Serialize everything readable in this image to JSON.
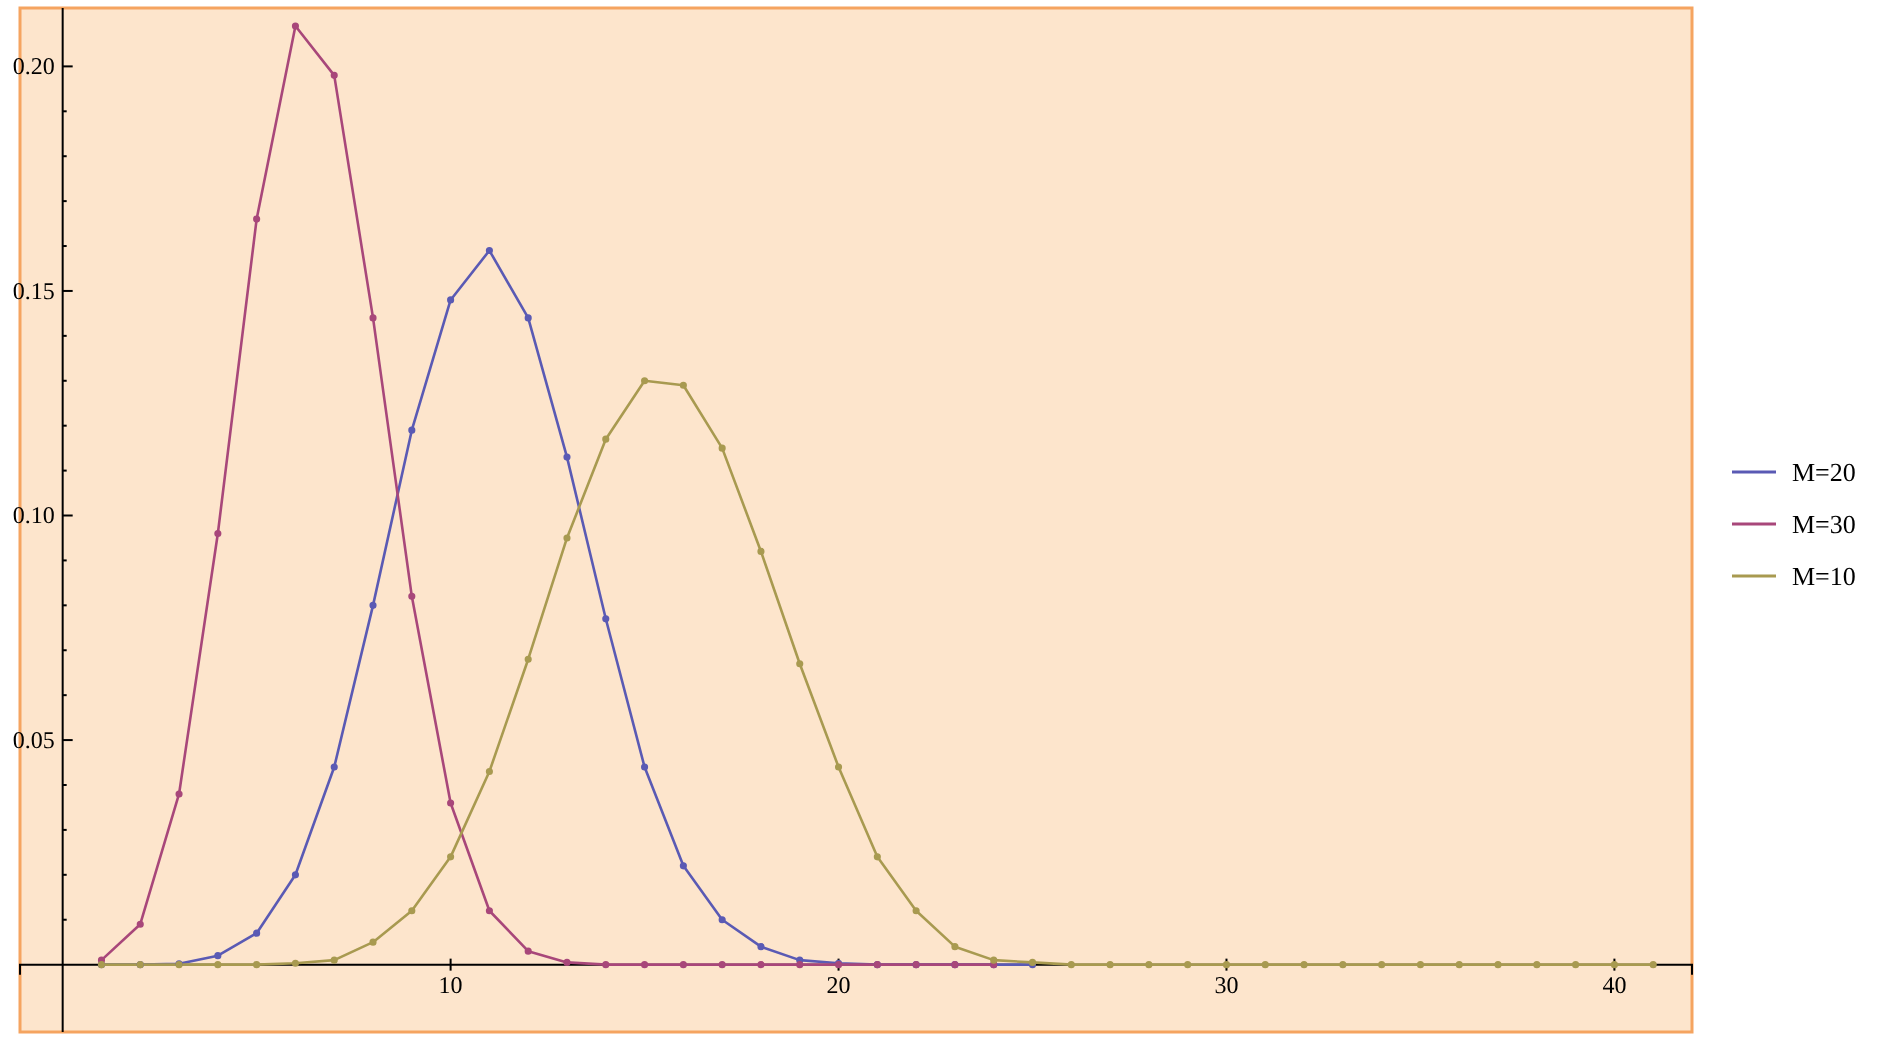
{
  "chart_data": {
    "type": "line",
    "x": [
      1,
      2,
      3,
      4,
      5,
      6,
      7,
      8,
      9,
      10,
      11,
      12,
      13,
      14,
      15,
      16,
      17,
      18,
      19,
      20,
      21,
      22,
      23,
      24,
      25,
      26,
      27,
      28,
      29,
      30,
      31,
      32,
      33,
      34,
      35,
      36,
      37,
      38,
      39,
      40,
      41
    ],
    "series": [
      {
        "name": "M=20",
        "color": "#5a5ab4",
        "values": [
          0,
          0,
          0.0002,
          0.002,
          0.007,
          0.02,
          0.044,
          0.08,
          0.119,
          0.148,
          0.159,
          0.144,
          0.113,
          0.077,
          0.044,
          0.022,
          0.01,
          0.004,
          0.001,
          0.0003,
          0,
          0,
          0,
          0,
          0,
          null,
          null,
          null,
          null,
          null,
          null,
          null,
          null,
          null,
          null,
          null,
          null,
          null,
          null,
          null,
          null
        ]
      },
      {
        "name": "M=30",
        "color": "#a8477a",
        "values": [
          0.001,
          0.009,
          0.038,
          0.096,
          0.166,
          0.209,
          0.198,
          0.144,
          0.082,
          0.036,
          0.012,
          0.003,
          0.0005,
          0,
          0,
          0,
          0,
          0,
          0,
          0,
          0,
          0,
          0,
          0,
          null,
          null,
          null,
          null,
          null,
          null,
          null,
          null,
          null,
          null,
          null,
          null,
          null,
          null,
          null,
          null,
          null
        ]
      },
      {
        "name": "M=10",
        "color": "#a89a50",
        "values": [
          0,
          0,
          0,
          0,
          0,
          0.0003,
          0.001,
          0.005,
          0.012,
          0.024,
          0.043,
          0.068,
          0.095,
          0.117,
          0.13,
          0.129,
          0.115,
          0.092,
          0.067,
          0.044,
          0.024,
          0.012,
          0.004,
          0.001,
          0.0005,
          0,
          0,
          0,
          0,
          0,
          0,
          0,
          0,
          0,
          0,
          0,
          0,
          0,
          0,
          0,
          0
        ]
      }
    ],
    "xlim": [
      -1.1,
      42
    ],
    "xticks": [
      10,
      20,
      30,
      40
    ],
    "ylim": [
      -0.015,
      0.213
    ],
    "yticks": [
      {
        "value": 0.01,
        "label": null
      },
      {
        "value": 0.02,
        "label": null
      },
      {
        "value": 0.03,
        "label": null
      },
      {
        "value": 0.04,
        "label": null
      },
      0.05,
      {
        "value": 0.06,
        "label": null
      },
      {
        "value": 0.07,
        "label": null
      },
      {
        "value": 0.08,
        "label": null
      },
      {
        "value": 0.09,
        "label": null
      },
      {
        "value": 0.1,
        "label": "0.10"
      },
      {
        "value": 0.11,
        "label": null
      },
      {
        "value": 0.12,
        "label": null
      },
      {
        "value": 0.13,
        "label": null
      },
      {
        "value": 0.14,
        "label": null
      },
      0.15,
      {
        "value": 0.16,
        "label": null
      },
      {
        "value": 0.17,
        "label": null
      },
      {
        "value": 0.18,
        "label": null
      },
      {
        "value": 0.19,
        "label": null
      },
      {
        "value": 0.2,
        "label": "0.20"
      }
    ],
    "marker": "circle",
    "legend": "right",
    "grid": false
  }
}
